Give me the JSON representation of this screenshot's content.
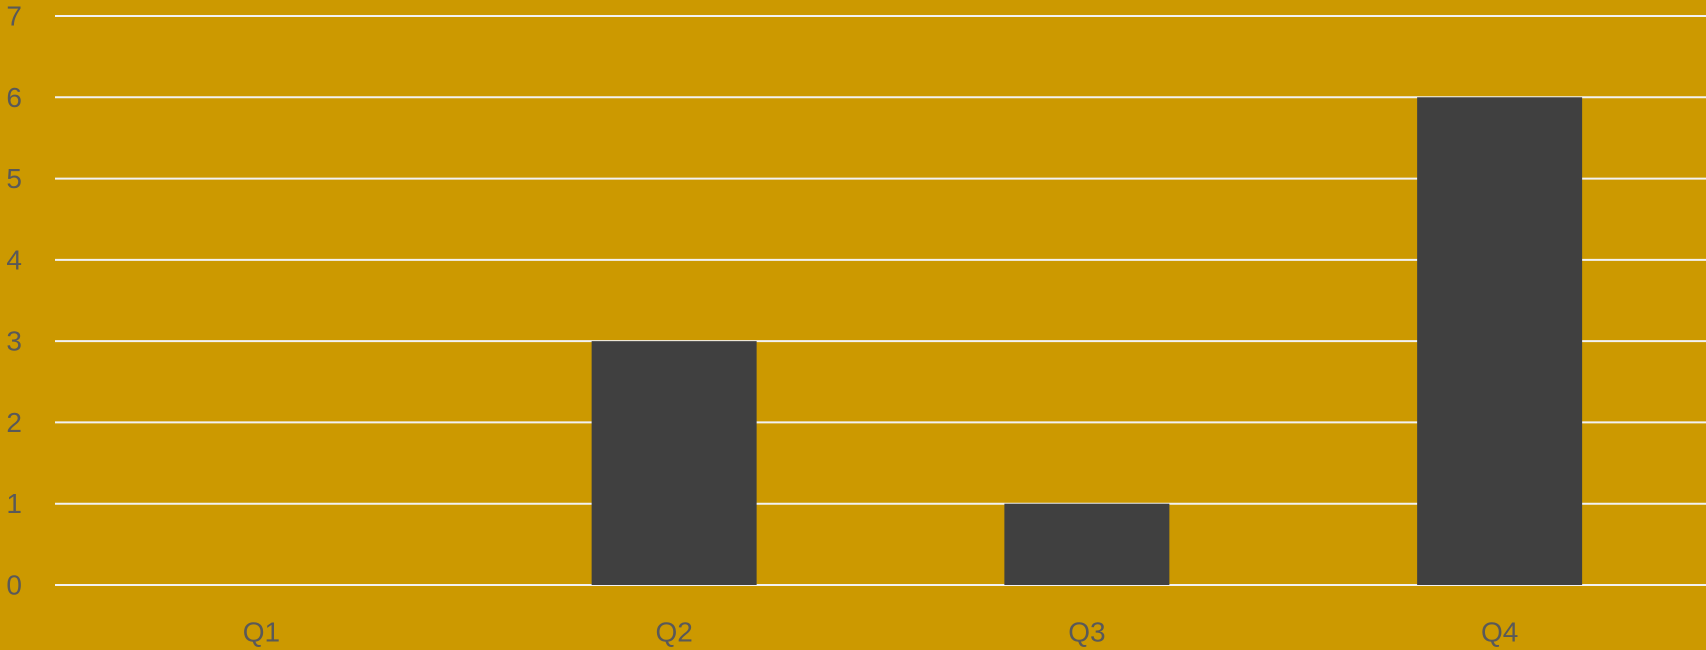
{
  "colors": {
    "background": "#CC9900",
    "bar": "#404040",
    "gridline": "#F2F2F2",
    "label": "#595959"
  },
  "chart_data": {
    "type": "bar",
    "categories": [
      "Q1",
      "Q2",
      "Q3",
      "Q4"
    ],
    "series": [
      {
        "values": [
          0,
          3,
          1,
          6
        ]
      }
    ],
    "ylim": [
      0,
      7
    ],
    "yticks": [
      0,
      1,
      2,
      3,
      4,
      5,
      6,
      7
    ],
    "grid": true,
    "legend": "none"
  }
}
